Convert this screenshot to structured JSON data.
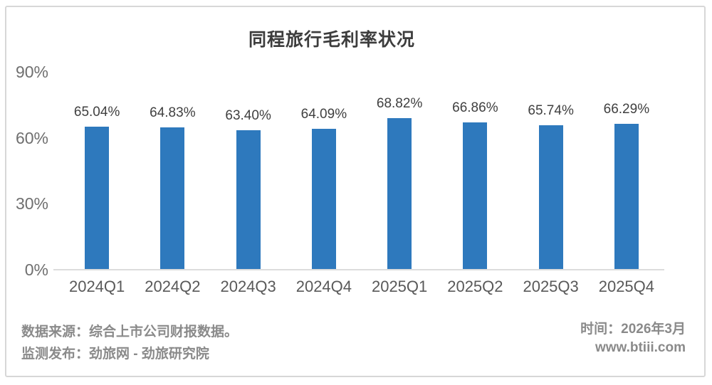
{
  "chart_data": {
    "type": "bar",
    "title": "同程旅行毛利率状况",
    "categories": [
      "2024Q1",
      "2024Q2",
      "2024Q3",
      "2024Q4",
      "2025Q1",
      "2025Q2",
      "2025Q3",
      "2025Q4"
    ],
    "values": [
      65.04,
      64.83,
      63.4,
      64.09,
      68.82,
      66.86,
      65.74,
      66.29
    ],
    "value_labels": [
      "65.04%",
      "64.83%",
      "63.40%",
      "64.09%",
      "68.82%",
      "66.86%",
      "65.74%",
      "66.29%"
    ],
    "xlabel": "",
    "ylabel": "",
    "ylim": [
      0,
      90
    ],
    "yticks": [
      {
        "label": "0%",
        "value": 0
      },
      {
        "label": "30%",
        "value": 30
      },
      {
        "label": "60%",
        "value": 60
      },
      {
        "label": "90%",
        "value": 90
      }
    ],
    "grid": "off",
    "legend": "none",
    "bar_color": "#2e79bd"
  },
  "footer": {
    "source_line": "数据来源：综合上市公司财报数据。",
    "publisher_line": "监测发布：劲旅网 - 劲旅研究院",
    "time_line": "时间：2026年3月",
    "website": "www.btiii.com"
  }
}
